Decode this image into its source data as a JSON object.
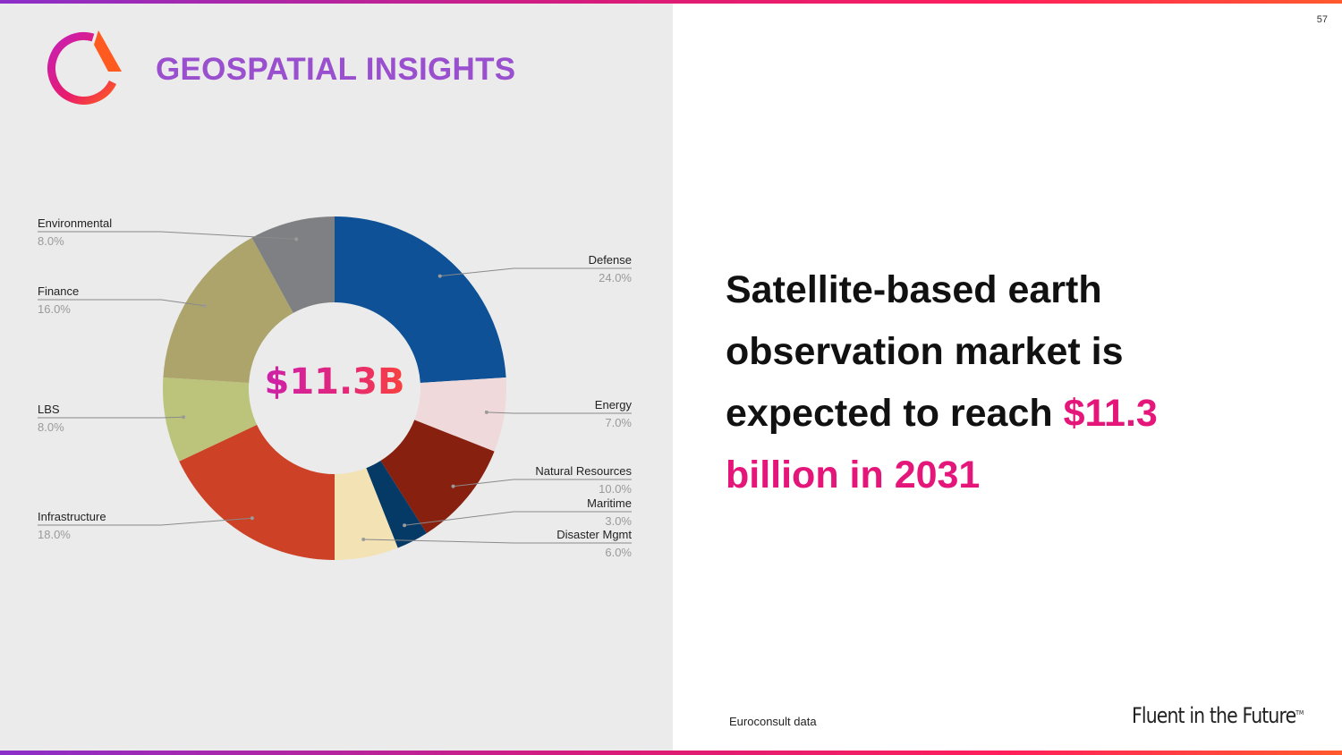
{
  "brand": {
    "title": "GEOSPATIAL INSIGHTS",
    "gradient": [
      "#c61fb8",
      "#e81c6b",
      "#ff5a1f"
    ]
  },
  "page_number": "57",
  "headline": {
    "line_main": "Satellite-based earth observation market is expected to reach ",
    "line_accent": "$11.3 billion in 2031",
    "accent_color": "#e5167a"
  },
  "source": "Euroconsult data",
  "tagline": {
    "text": "Fluent in the Future",
    "mark": "TM"
  },
  "chart_data": {
    "type": "pie",
    "style": "donut",
    "center_label": "$11.3B",
    "slices": [
      {
        "label": "Defense",
        "pct_label": "24.0%",
        "value": 24.0,
        "color": "#0e5196",
        "side": "right"
      },
      {
        "label": "Energy",
        "pct_label": "7.0%",
        "value": 7.0,
        "color": "#efd9db",
        "side": "right"
      },
      {
        "label": "Natural Resources",
        "pct_label": "10.0%",
        "value": 10.0,
        "color": "#882010",
        "side": "right"
      },
      {
        "label": "Maritime",
        "pct_label": "3.0%",
        "value": 3.0,
        "color": "#063a66",
        "side": "right"
      },
      {
        "label": "Disaster Mgmt",
        "pct_label": "6.0%",
        "value": 6.0,
        "color": "#f2e2b4",
        "side": "right"
      },
      {
        "label": "Infrastructure",
        "pct_label": "18.0%",
        "value": 18.0,
        "color": "#cd4126",
        "side": "left"
      },
      {
        "label": "LBS",
        "pct_label": "8.0%",
        "value": 8.0,
        "color": "#bbc47a",
        "side": "left"
      },
      {
        "label": "Finance",
        "pct_label": "16.0%",
        "value": 16.0,
        "color": "#ada46c",
        "side": "left"
      },
      {
        "label": "Environmental",
        "pct_label": "8.0%",
        "value": 8.0,
        "color": "#7f8083",
        "side": "left"
      }
    ]
  }
}
